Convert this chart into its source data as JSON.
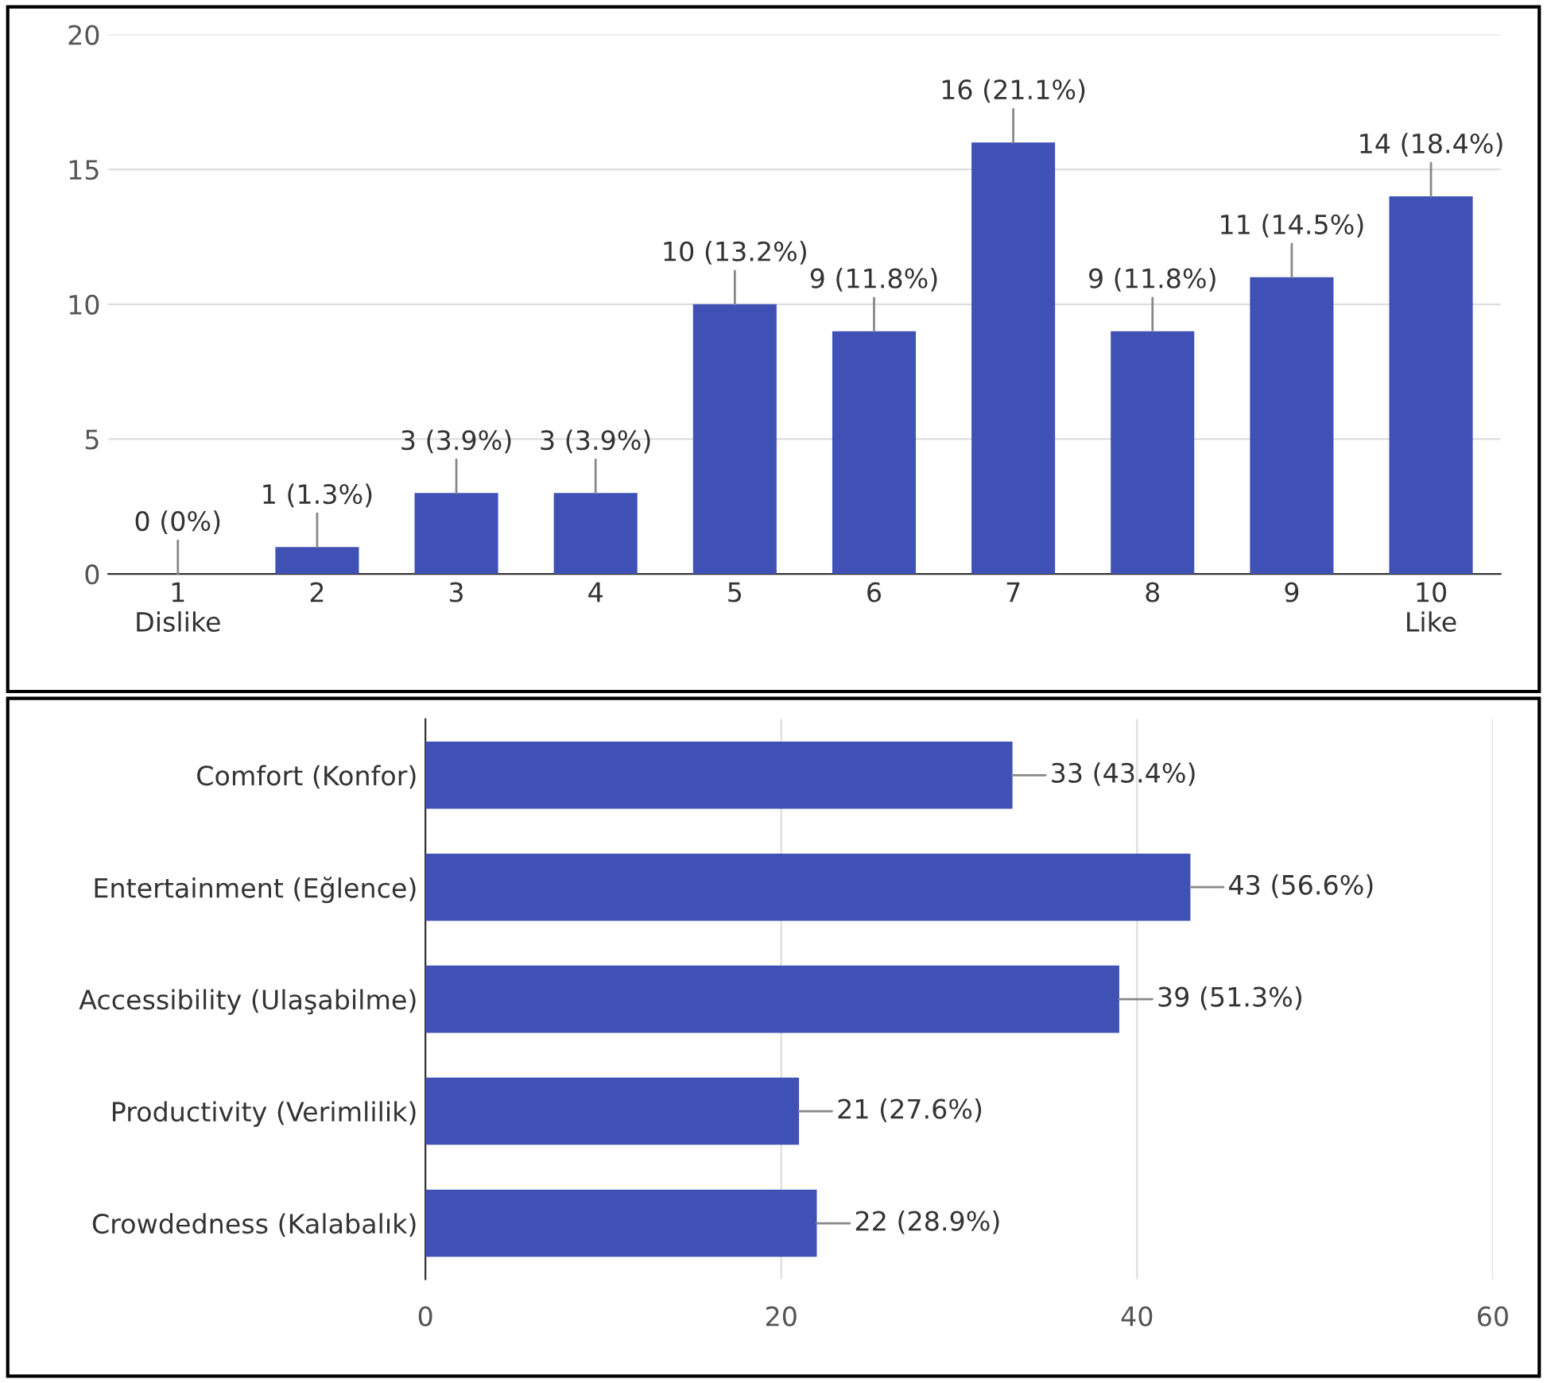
{
  "chart_data": [
    {
      "type": "bar",
      "categories": [
        "1\nDislike",
        "2",
        "3",
        "4",
        "5",
        "6",
        "7",
        "8",
        "9",
        "10\nLike"
      ],
      "values": [
        0,
        1,
        3,
        3,
        10,
        9,
        16,
        9,
        11,
        14
      ],
      "color": "#3f51b5",
      "value_labels": [
        "0 (0%)",
        "1 (1.3%)",
        "3 (3.9%)",
        "3 (3.9%)",
        "10 (13.2%)",
        "9 (11.8%)",
        "16 (21.1%)",
        "9 (11.8%)",
        "11 (14.5%)",
        "14 (18.4%)"
      ],
      "ylim": [
        0,
        20
      ],
      "yticks": [
        0,
        5,
        10,
        15,
        20
      ],
      "grid": "y"
    },
    {
      "type": "bar",
      "orientation": "horizontal",
      "categories": [
        "Comfort (Konfor)",
        "Entertainment (Eğlence)",
        "Accessibility (Ulaşabilme)",
        "Productivity (Verimlilik)",
        "Crowdedness (Kalabalık)"
      ],
      "values": [
        33,
        43,
        39,
        21,
        22
      ],
      "color": "#3f51b5",
      "value_labels": [
        "33 (43.4%)",
        "43 (56.6%)",
        "39 (51.3%)",
        "21 (27.6%)",
        "22 (28.9%)"
      ],
      "xlim": [
        0,
        60
      ],
      "xticks": [
        0,
        20,
        40,
        60
      ],
      "grid": "x"
    }
  ]
}
